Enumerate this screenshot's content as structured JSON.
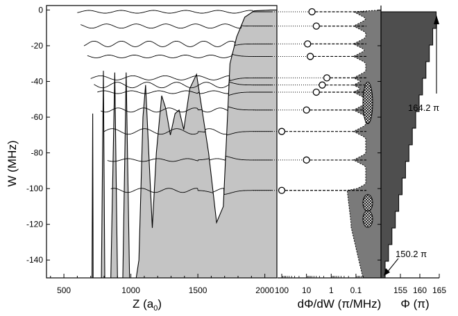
{
  "chart_data": [
    {
      "type": "line",
      "title": "",
      "ylabel": "W (MHz)",
      "xlabel_main": "Z (a",
      "xlabel_sub": "0",
      "xlabel_close": ")",
      "xlim": [
        370,
        2090
      ],
      "ylim": [
        -150,
        2.5
      ],
      "x_ticks": [
        500,
        1000,
        1500,
        2000
      ],
      "y_ticks": [
        0,
        -20,
        -40,
        -60,
        -80,
        -100,
        -120,
        -140
      ],
      "series": [
        {
          "type": "potential-curve",
          "values": [
            [
              370,
              -150
            ],
            [
              700,
              -150
            ],
            [
              710,
              -150
            ],
            [
              715,
              -58
            ],
            [
              718,
              -150
            ],
            [
              780,
              -150
            ],
            [
              795,
              -34
            ],
            [
              805,
              -150
            ],
            [
              850,
              -150
            ],
            [
              880,
              -35
            ],
            [
              900,
              -150
            ],
            [
              940,
              -150
            ],
            [
              965,
              -35
            ],
            [
              990,
              -150
            ],
            [
              1040,
              -150
            ],
            [
              1060,
              -140
            ],
            [
              1090,
              -60
            ],
            [
              1110,
              -42
            ],
            [
              1140,
              -90
            ],
            [
              1160,
              -122
            ],
            [
              1190,
              -80
            ],
            [
              1230,
              -48
            ],
            [
              1260,
              -55
            ],
            [
              1295,
              -70
            ],
            [
              1330,
              -58
            ],
            [
              1360,
              -56
            ],
            [
              1395,
              -67
            ],
            [
              1440,
              -44
            ],
            [
              1490,
              -36
            ],
            [
              1540,
              -60
            ],
            [
              1580,
              -80
            ],
            [
              1640,
              -119
            ],
            [
              1690,
              -110
            ],
            [
              1740,
              -30
            ],
            [
              1790,
              -15
            ],
            [
              1850,
              -4
            ],
            [
              1920,
              -0.5
            ],
            [
              2040,
              0
            ]
          ]
        }
      ],
      "levels_w": [
        -1,
        -9,
        -19,
        -26,
        -38,
        -42,
        -46,
        -56,
        -68,
        -84,
        -101
      ]
    },
    {
      "type": "line",
      "xlabel": "dΦ/dW (π/MHz)",
      "x_tick_labels": [
        "100",
        "10",
        "1",
        "0.1"
      ],
      "markers_w": [
        -1,
        -9,
        -19,
        -26,
        -38,
        -42,
        -46,
        -56,
        -68,
        -84,
        -101
      ],
      "markers_dphi": [
        6,
        4,
        9,
        7,
        1.5,
        2.3,
        4,
        10,
        100,
        10,
        100
      ],
      "ellipse_w": [
        -52,
        -108,
        -117
      ]
    },
    {
      "type": "area",
      "xlabel": "Φ (π)",
      "xlim": [
        150,
        165
      ],
      "x_ticks": [
        155,
        160,
        165
      ],
      "annotations": [
        "164.2 π",
        "150.2 π"
      ],
      "phi_range": [
        150.2,
        164.2
      ]
    }
  ]
}
